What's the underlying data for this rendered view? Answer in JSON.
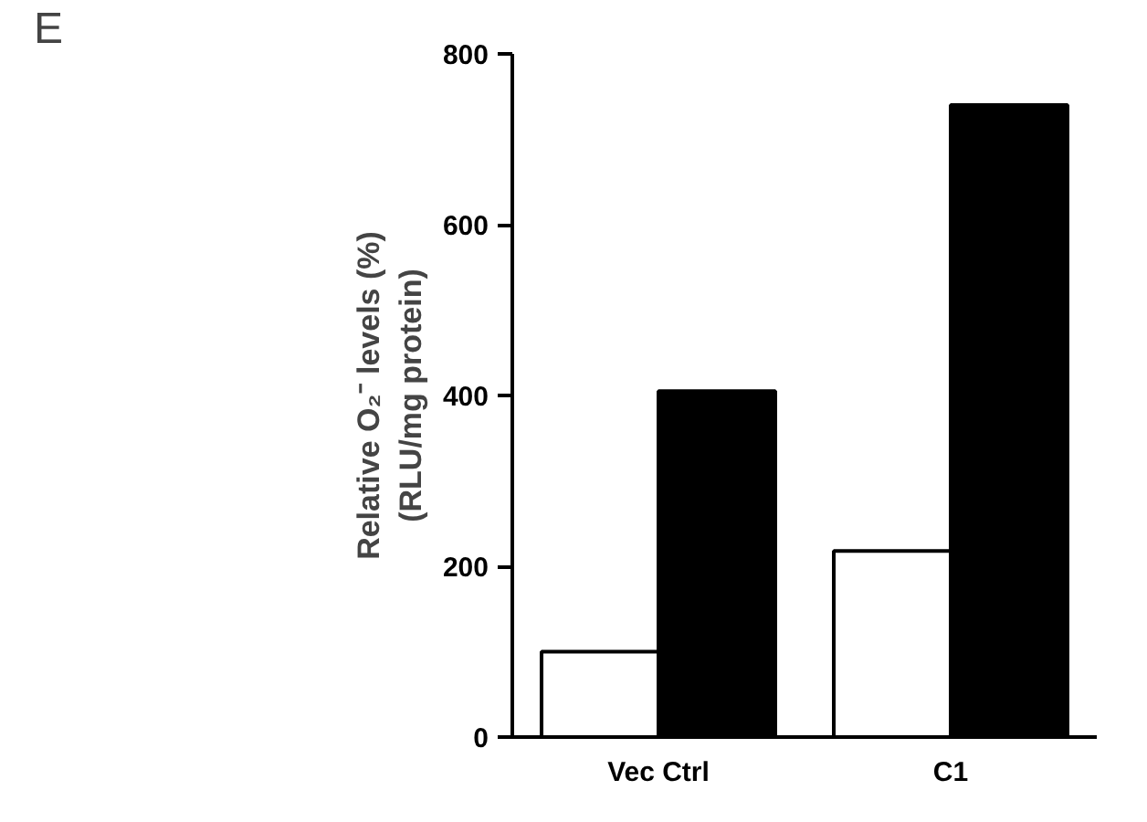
{
  "chart_data": {
    "type": "bar",
    "categories": [
      "Vec Ctrl",
      "C1"
    ],
    "series": [
      {
        "color": "#ffffff",
        "values": [
          100,
          218
        ]
      },
      {
        "color": "#000000",
        "values": [
          405,
          740
        ]
      }
    ],
    "ylabel": "Relative O₂⁻ levels (%)\n(RLU/mg protein)",
    "ylim": [
      0,
      800
    ],
    "yticks": [
      0,
      200,
      400,
      600,
      800
    ],
    "grid": false,
    "annotations": [
      "E"
    ]
  }
}
